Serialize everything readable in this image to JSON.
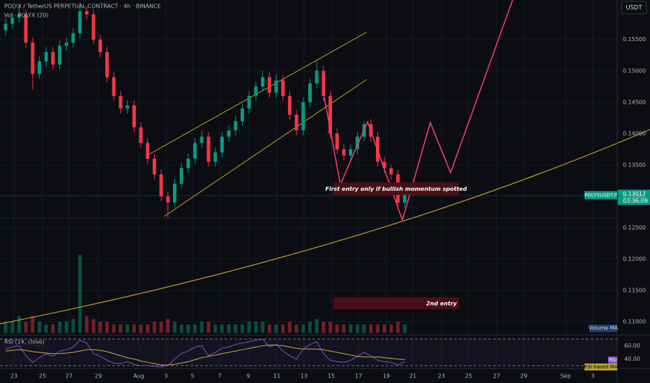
{
  "chart_data": {
    "type": "candlestick",
    "title": "POLYX / TetherUS PERPETUAL CONTRACT · 4h · BINANCE",
    "volume_label": "Vol · POLYX (20)",
    "currency": "USDT",
    "symbol_label": "POLYXUSDT.P",
    "last_price_label": "0.13017",
    "countdown": "03:36:09",
    "volume_ma_label": "Volume MA",
    "rsi_title": "RSI (14, close)",
    "rsi_label": "RSI",
    "rsi_ma_label": "RSI-based MA",
    "annotations": [
      "First entry only if bullish momentum spotted",
      "2nd entry"
    ],
    "x_labels": [
      "23",
      "25",
      "27",
      "29",
      "Aug",
      "3",
      "5",
      "7",
      "9",
      "11",
      "13",
      "15",
      "17",
      "19",
      "21",
      "23",
      "25",
      "27",
      "29",
      "Sep",
      "3"
    ],
    "up_color": "#089981",
    "down_color": "#f23645",
    "ylim": [
      0.108,
      0.1613
    ],
    "yticks": [
      {
        "value": 0.11,
        "label": "0.11000"
      },
      {
        "value": 0.115,
        "label": "0.11500"
      },
      {
        "value": 0.12,
        "label": "0.12000"
      },
      {
        "value": 0.125,
        "label": "0.12500"
      },
      {
        "value": 0.13,
        "label": "0.13000"
      },
      {
        "value": 0.135,
        "label": "0.13500"
      },
      {
        "value": 0.14,
        "label": "0.14000"
      },
      {
        "value": 0.145,
        "label": "0.14500"
      },
      {
        "value": 0.15,
        "label": "0.15000"
      },
      {
        "value": 0.155,
        "label": "0.15500"
      }
    ],
    "open": [
      0.1565,
      0.1575,
      0.1585,
      0.159,
      0.1545,
      0.1495,
      0.1515,
      0.153,
      0.151,
      0.154,
      0.1545,
      0.156,
      0.1595,
      0.159,
      0.155,
      0.153,
      0.149,
      0.146,
      0.144,
      0.1445,
      0.141,
      0.1385,
      0.136,
      0.1335,
      0.13,
      0.129,
      0.132,
      0.1345,
      0.136,
      0.1385,
      0.1395,
      0.1355,
      0.137,
      0.1395,
      0.1405,
      0.142,
      0.144,
      0.146,
      0.1475,
      0.149,
      0.1465,
      0.1485,
      0.146,
      0.143,
      0.1405,
      0.145,
      0.148,
      0.15,
      0.146,
      0.14,
      0.1375,
      0.1365,
      0.1375,
      0.1395,
      0.1415,
      0.1395,
      0.1355,
      0.1345,
      0.1335,
      0.129
    ],
    "high": [
      0.1583,
      0.1593,
      0.1605,
      0.1598,
      0.1553,
      0.1523,
      0.1538,
      0.1538,
      0.1548,
      0.1553,
      0.1568,
      0.161,
      0.1603,
      0.1598,
      0.1558,
      0.1538,
      0.1498,
      0.1468,
      0.1453,
      0.1453,
      0.1418,
      0.1393,
      0.1368,
      0.1343,
      0.1308,
      0.1328,
      0.1353,
      0.1368,
      0.1393,
      0.1405,
      0.1403,
      0.1378,
      0.1403,
      0.1413,
      0.1428,
      0.1448,
      0.1468,
      0.1483,
      0.15,
      0.1498,
      0.1495,
      0.1493,
      0.1468,
      0.1438,
      0.1458,
      0.1488,
      0.1515,
      0.1508,
      0.1468,
      0.1408,
      0.1383,
      0.1383,
      0.1403,
      0.142,
      0.1423,
      0.1403,
      0.1363,
      0.135,
      0.1343,
      0.1312
    ],
    "low": [
      0.1557,
      0.1567,
      0.1577,
      0.1537,
      0.147,
      0.1487,
      0.1507,
      0.1502,
      0.1502,
      0.1532,
      0.1537,
      0.1552,
      0.1582,
      0.1542,
      0.1522,
      0.1482,
      0.1452,
      0.1432,
      0.1432,
      0.1402,
      0.1377,
      0.1352,
      0.1327,
      0.1292,
      0.1265,
      0.1282,
      0.1312,
      0.1337,
      0.1352,
      0.1377,
      0.1347,
      0.1347,
      0.1362,
      0.1387,
      0.1397,
      0.1412,
      0.1432,
      0.1452,
      0.1467,
      0.1457,
      0.1457,
      0.1452,
      0.1422,
      0.1397,
      0.1397,
      0.1442,
      0.1472,
      0.1452,
      0.1392,
      0.1367,
      0.1357,
      0.1357,
      0.1367,
      0.1387,
      0.1387,
      0.1347,
      0.1337,
      0.1327,
      0.1282,
      0.1282
    ],
    "close": [
      0.1575,
      0.1585,
      0.159,
      0.1545,
      0.1495,
      0.1515,
      0.153,
      0.151,
      0.154,
      0.1545,
      0.156,
      0.1595,
      0.159,
      0.155,
      0.153,
      0.149,
      0.146,
      0.144,
      0.1445,
      0.141,
      0.1385,
      0.136,
      0.1335,
      0.13,
      0.129,
      0.132,
      0.1345,
      0.136,
      0.1385,
      0.1395,
      0.1355,
      0.137,
      0.1395,
      0.1405,
      0.142,
      0.144,
      0.146,
      0.1475,
      0.149,
      0.1465,
      0.1485,
      0.146,
      0.143,
      0.1405,
      0.145,
      0.148,
      0.15,
      0.146,
      0.14,
      0.1375,
      0.1365,
      0.1375,
      0.1395,
      0.1415,
      0.1395,
      0.1355,
      0.1345,
      0.1335,
      0.129,
      0.13017
    ],
    "volume": [
      2,
      2,
      3,
      2,
      3,
      2,
      1.5,
      1.5,
      2,
      2,
      2.5,
      14,
      3,
      2.5,
      2,
      2,
      1.5,
      1.5,
      1.5,
      1.5,
      1.5,
      1.5,
      2,
      2,
      2.5,
      2,
      1.5,
      1.5,
      1.5,
      2,
      2,
      1.5,
      1.5,
      1.5,
      1.5,
      1.5,
      2,
      2,
      2,
      1.5,
      1.5,
      1.5,
      2,
      1.5,
      1.5,
      2,
      2.5,
      2,
      2,
      1.5,
      1.5,
      1.5,
      1.5,
      1.5,
      1.5,
      1.5,
      1.5,
      1.5,
      2,
      1.5
    ],
    "rsi_ylim": [
      28,
      72
    ],
    "rsi_ticks": [
      {
        "value": 60,
        "label": "60.00"
      },
      {
        "value": 40,
        "label": "40.00"
      }
    ],
    "rsi_bands": [
      30,
      70
    ],
    "rsi": [
      55,
      58,
      60,
      45,
      35,
      42,
      48,
      44,
      52,
      54,
      58,
      68,
      64,
      48,
      44,
      38,
      34,
      33,
      36,
      32,
      30,
      30,
      29,
      28,
      30,
      40,
      48,
      52,
      58,
      60,
      45,
      50,
      56,
      58,
      62,
      64,
      66,
      68,
      70,
      58,
      62,
      52,
      45,
      40,
      55,
      62,
      66,
      48,
      38,
      36,
      35,
      38,
      44,
      50,
      45,
      38,
      36,
      35,
      31,
      36
    ],
    "rsi_ma": [
      52,
      53,
      54,
      53,
      51,
      50,
      49,
      48,
      48,
      49,
      50,
      52,
      54,
      54,
      53,
      51,
      48,
      45,
      42,
      40,
      37,
      35,
      33,
      31,
      31,
      32,
      34,
      36,
      39,
      42,
      44,
      46,
      48,
      50,
      52,
      54,
      56,
      58,
      60,
      61,
      61,
      60,
      58,
      56,
      55,
      55,
      55,
      54,
      52,
      50,
      48,
      46,
      44,
      43,
      43,
      43,
      42,
      41,
      40,
      39
    ]
  }
}
